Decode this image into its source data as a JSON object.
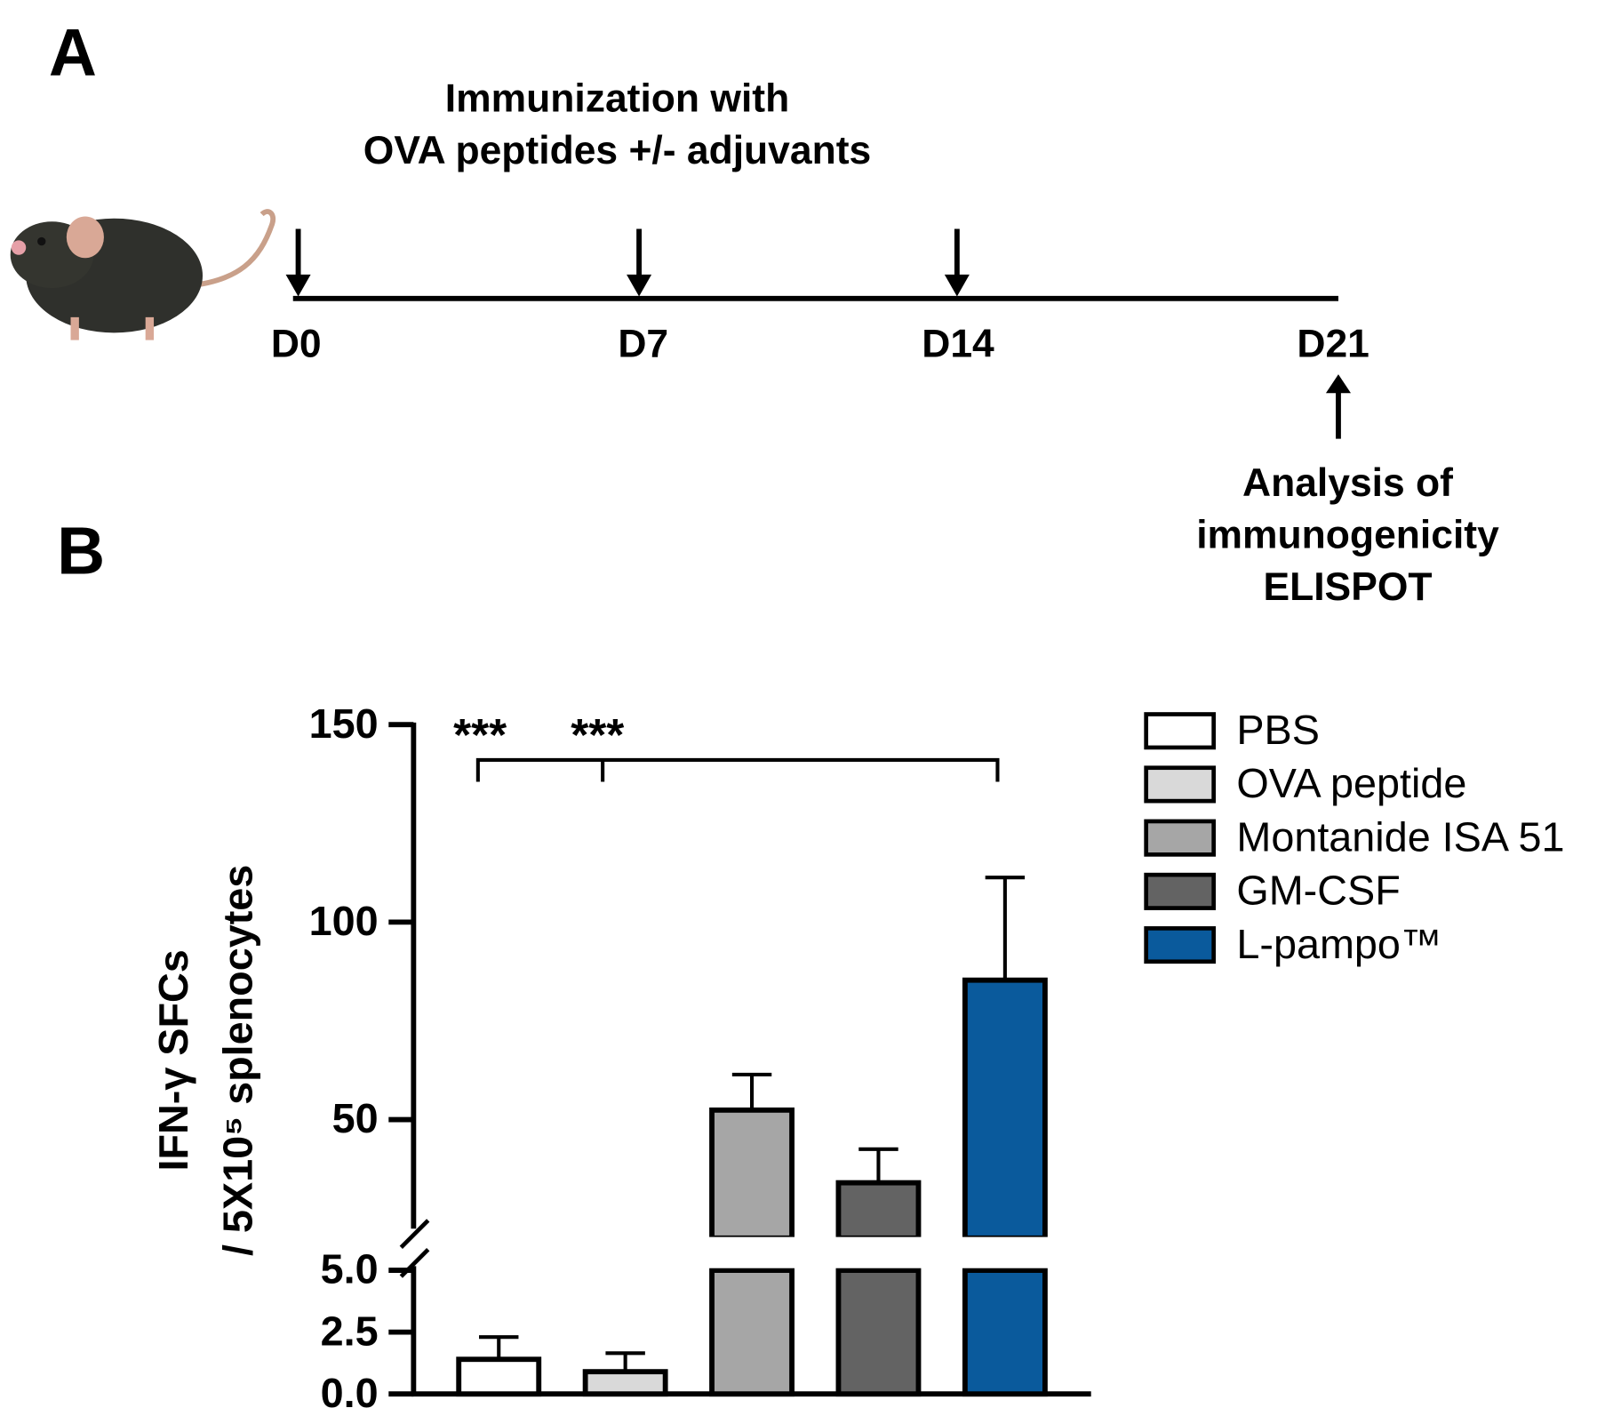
{
  "panel_labels": [
    "A",
    "B"
  ],
  "timeline": {
    "title": [
      "Immunization with",
      "OVA peptides +/- adjuvants"
    ],
    "days": [
      "D0",
      "D7",
      "D14",
      "D21"
    ],
    "analysis": [
      "Analysis of",
      "immunogenicity",
      "ELISPOT"
    ]
  },
  "chart_data": {
    "type": "bar",
    "ylabel": [
      "IFN-γ SFCs",
      "/ 5X10⁵ splenocytes"
    ],
    "categories": [
      "PBS",
      "OVA peptide",
      "Montanide ISA 51",
      "GM-CSF",
      "L-pampo™"
    ],
    "colors": [
      "#ffffff",
      "#d9d9d9",
      "#a6a6a6",
      "#636363",
      "#0a5a9c"
    ],
    "values": [
      1.4,
      0.9,
      52.4,
      34,
      85.3
    ],
    "errors": [
      0.9,
      0.75,
      9,
      8.5,
      26
    ],
    "segments": [
      {
        "ylim": [
          0,
          5
        ],
        "yticks": [
          {
            "value": 0,
            "label": "0.0"
          },
          {
            "value": 2.5,
            "label": "2.5"
          },
          {
            "value": 5,
            "label": "5.0"
          }
        ]
      },
      {
        "ylim": [
          20,
          150
        ],
        "yticks": [
          50,
          100,
          150
        ]
      }
    ],
    "annotations": [
      "***",
      "***"
    ],
    "legend": "upper right"
  }
}
